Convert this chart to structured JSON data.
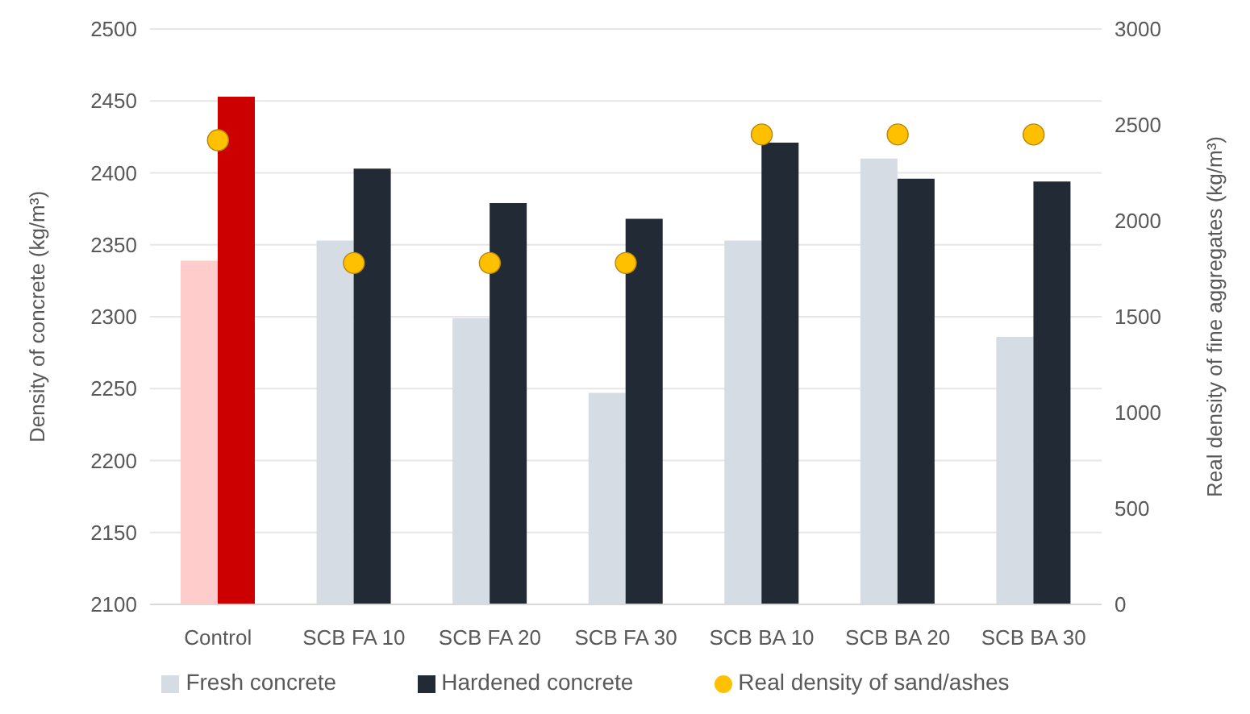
{
  "chart_data": {
    "type": "bar",
    "categories": [
      "Control",
      "SCB FA 10",
      "SCB FA 20",
      "SCB FA 30",
      "SCB BA 10",
      "SCB BA 20",
      "SCB BA 30"
    ],
    "ylabel": "Density of concrete (kg/m³)",
    "y2label": "Real density of fine aggregates (kg/m³)",
    "ylim": [
      2100,
      2500
    ],
    "yticks": [
      2100,
      2150,
      2200,
      2250,
      2300,
      2350,
      2400,
      2450,
      2500
    ],
    "y2lim": [
      0,
      3000
    ],
    "y2ticks": [
      0,
      500,
      1000,
      1500,
      2000,
      2500,
      3000
    ],
    "grid": "y",
    "legend": "bottom",
    "series": [
      {
        "name": "Fresh concrete",
        "color": "#d6dce4",
        "colors": [
          "#ffcccc",
          "#d6dce4",
          "#d6dce4",
          "#d6dce4",
          "#d6dce4",
          "#d6dce4",
          "#d6dce4"
        ],
        "values": [
          2339,
          2353,
          2299,
          2247,
          2353,
          2410,
          2286
        ]
      },
      {
        "name": "Hardened concrete",
        "color": "#222a35",
        "colors": [
          "#cc0000",
          "#222a35",
          "#222a35",
          "#222a35",
          "#222a35",
          "#222a35",
          "#222a35"
        ],
        "values": [
          2453,
          2403,
          2379,
          2368,
          2421,
          2396,
          2394
        ]
      },
      {
        "name": "Real density of sand/ashes",
        "type": "scatter",
        "axis": "y2",
        "marker": "circle",
        "color": "#ffc000",
        "values": [
          2420,
          1780,
          1780,
          1780,
          2450,
          2450,
          2450
        ]
      }
    ]
  }
}
